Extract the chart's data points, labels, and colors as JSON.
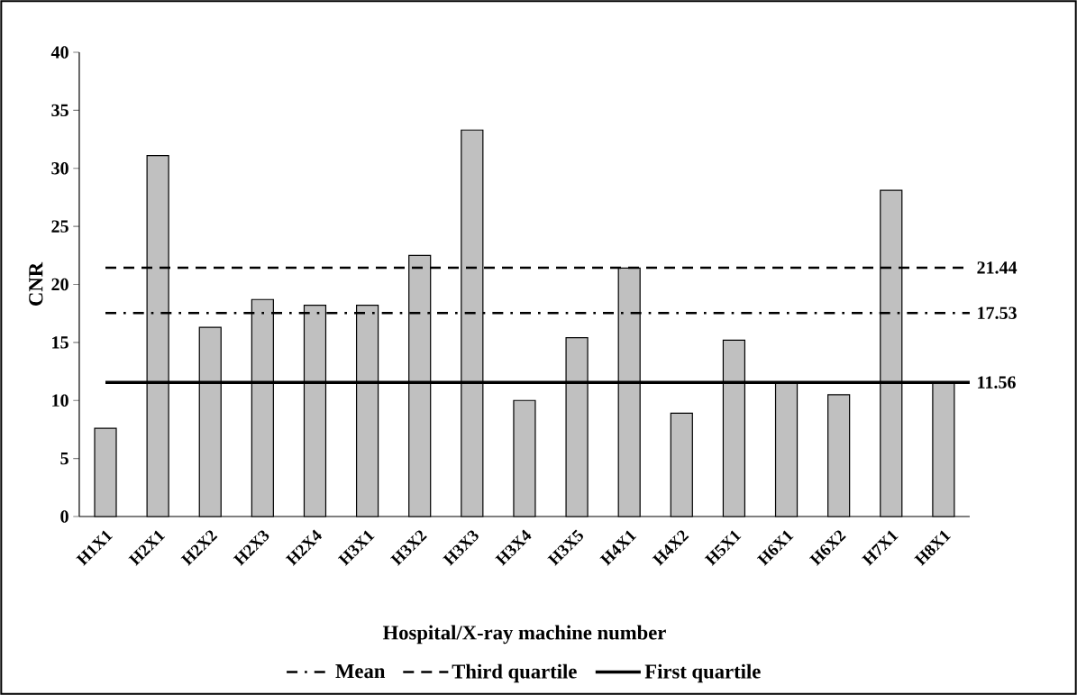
{
  "chart_data": {
    "type": "bar",
    "xlabel": "Hospital/X-ray machine number",
    "ylabel": "CNR",
    "categories": [
      "H1X1",
      "H2X1",
      "H2X2",
      "H2X3",
      "H2X4",
      "H3X1",
      "H3X2",
      "H3X3",
      "H3X4",
      "H3X5",
      "H4X1",
      "H4X2",
      "H5X1",
      "H6X1",
      "H6X2",
      "H7X1",
      "H8X1"
    ],
    "values": [
      7.6,
      31.1,
      16.3,
      18.7,
      18.2,
      18.2,
      22.5,
      33.3,
      10.0,
      15.4,
      21.4,
      8.9,
      15.2,
      11.5,
      10.5,
      28.1,
      11.5
    ],
    "color": "#c0c0c0",
    "ylim": [
      0,
      40
    ],
    "yticks": [
      0,
      5,
      10,
      15,
      20,
      25,
      30,
      35,
      40
    ],
    "ref_lines": [
      {
        "axis": "y",
        "value": 17.53,
        "label": "Mean",
        "line_style": "dashdot",
        "color": "#000000"
      },
      {
        "axis": "y",
        "value": 21.44,
        "label": "Third quartile",
        "line_style": "dashed",
        "color": "#000000"
      },
      {
        "axis": "y",
        "value": 11.56,
        "label": "First quartile",
        "line_style": "solid",
        "color": "#000000"
      }
    ],
    "annotations": [
      "17.53",
      "21.44",
      "11.56"
    ],
    "grid": false,
    "legend": "bottom"
  }
}
